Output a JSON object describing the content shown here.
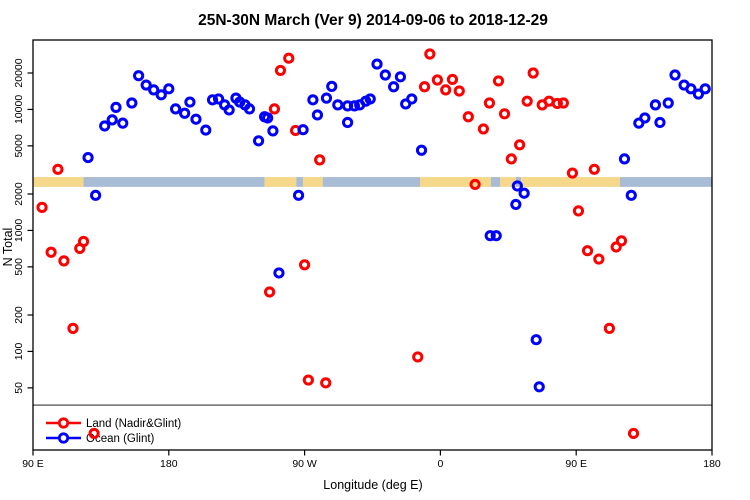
{
  "title": "25N-30N March (Ver 9)   2014-09-06 to 2018-12-29",
  "legend": {
    "items": [
      {
        "label": "Land (Nadir&Glint)",
        "color": "#FF0000"
      },
      {
        "label": "Ocean (Glint)",
        "color": "#0000FF"
      }
    ]
  },
  "chart_data": {
    "type": "scatter",
    "title": "25N-30N March (Ver 9)   2014-09-06 to 2018-12-29",
    "xlabel": "Longitude (deg E)",
    "ylabel": "N Total",
    "x_axis": {
      "range": [
        90,
        540
      ],
      "ticks": [
        90,
        180,
        270,
        360,
        450,
        540
      ],
      "tick_labels": [
        "90 E",
        "180",
        "90 W",
        "0",
        "90 E",
        "180"
      ],
      "note": "longitude axis starts at 90E and wraps eastward around the globe to 180"
    },
    "y_axis": {
      "scale": "log10",
      "range": [
        15,
        37500
      ],
      "ticks": [
        50,
        100,
        200,
        500,
        1000,
        2000,
        5000,
        10000,
        20000
      ],
      "tick_labels": [
        "50",
        "100",
        "200",
        "500",
        "1000",
        "2000",
        "5000",
        "10000",
        "20000"
      ]
    },
    "grid": false,
    "legend_position": "bottom-left-inside",
    "reference_line": {
      "n_value": 36,
      "color": "#808080"
    },
    "land_ocean_band": {
      "n_range": [
        2290,
        2760
      ],
      "land_color": "#F6D88A",
      "ocean_color": "#A8BCD6",
      "segments": [
        {
          "from": 90,
          "to": 123.5,
          "surface": "land"
        },
        {
          "from": 123.5,
          "to": 243.5,
          "surface": "ocean"
        },
        {
          "from": 243.5,
          "to": 264.5,
          "surface": "land"
        },
        {
          "from": 264.5,
          "to": 269,
          "surface": "ocean"
        },
        {
          "from": 269,
          "to": 282,
          "surface": "land"
        },
        {
          "from": 282,
          "to": 346.5,
          "surface": "ocean"
        },
        {
          "from": 346.5,
          "to": 393.5,
          "surface": "land"
        },
        {
          "from": 393.5,
          "to": 399.5,
          "surface": "ocean"
        },
        {
          "from": 399.5,
          "to": 410,
          "surface": "land"
        },
        {
          "from": 410,
          "to": 413.5,
          "surface": "ocean"
        },
        {
          "from": 413.5,
          "to": 479,
          "surface": "land"
        },
        {
          "from": 479,
          "to": 540,
          "surface": "ocean"
        }
      ]
    },
    "series": [
      {
        "name": "Land (Nadir&Glint)",
        "color": "#FF0000",
        "marker": "open-circle",
        "points": [
          [
            106.5,
            3200
          ],
          [
            96,
            1550
          ],
          [
            102,
            660
          ],
          [
            110.5,
            560
          ],
          [
            123.5,
            810
          ],
          [
            121,
            710
          ],
          [
            116.5,
            155
          ],
          [
            130.5,
            21
          ],
          [
            246.8,
            310
          ],
          [
            250,
            10100
          ],
          [
            254,
            21000
          ],
          [
            259.5,
            26500
          ],
          [
            264,
            6700
          ],
          [
            270,
            520
          ],
          [
            272.5,
            58
          ],
          [
            284,
            55
          ],
          [
            280,
            3830
          ],
          [
            345,
            90
          ],
          [
            349.5,
            15400
          ],
          [
            353,
            28700
          ],
          [
            358,
            17500
          ],
          [
            363.5,
            14500
          ],
          [
            368,
            17700
          ],
          [
            372.5,
            14200
          ],
          [
            378.5,
            8700
          ],
          [
            383,
            2400
          ],
          [
            388.5,
            6900
          ],
          [
            392.5,
            11300
          ],
          [
            398.5,
            17200
          ],
          [
            402.5,
            9200
          ],
          [
            407,
            3900
          ],
          [
            412.5,
            5100
          ],
          [
            417.5,
            11700
          ],
          [
            421.5,
            20000
          ],
          [
            427.5,
            10900
          ],
          [
            432,
            11700
          ],
          [
            437.5,
            11200
          ],
          [
            441.5,
            11300
          ],
          [
            447.5,
            2980
          ],
          [
            462,
            3200
          ],
          [
            451.5,
            1450
          ],
          [
            457.5,
            680
          ],
          [
            465,
            580
          ],
          [
            476.5,
            730
          ],
          [
            480,
            820
          ],
          [
            472,
            155
          ],
          [
            488,
            21
          ]
        ]
      },
      {
        "name": "Ocean (Glint)",
        "color": "#0000FF",
        "marker": "open-circle",
        "points": [
          [
            126.5,
            4000
          ],
          [
            131.5,
            1950
          ],
          [
            137.5,
            7300
          ],
          [
            142.5,
            8200
          ],
          [
            145,
            10400
          ],
          [
            149.5,
            7700
          ],
          [
            155.5,
            11300
          ],
          [
            160,
            19000
          ],
          [
            165,
            15900
          ],
          [
            170,
            14500
          ],
          [
            175,
            13200
          ],
          [
            180,
            14800
          ],
          [
            184.5,
            10100
          ],
          [
            190.5,
            9300
          ],
          [
            194,
            11500
          ],
          [
            198,
            8300
          ],
          [
            204.5,
            6750
          ],
          [
            209,
            12000
          ],
          [
            213,
            12200
          ],
          [
            217,
            10900
          ],
          [
            220,
            9900
          ],
          [
            224.5,
            12400
          ],
          [
            227,
            11500
          ],
          [
            230.5,
            10900
          ],
          [
            233.5,
            10100
          ],
          [
            239.5,
            5500
          ],
          [
            243.5,
            8700
          ],
          [
            245.5,
            8500
          ],
          [
            249,
            6650
          ],
          [
            253,
            445
          ],
          [
            266,
            1950
          ],
          [
            269,
            6800
          ],
          [
            275.5,
            12000
          ],
          [
            278.5,
            9000
          ],
          [
            284.5,
            12400
          ],
          [
            288,
            15500
          ],
          [
            292,
            10900
          ],
          [
            298.5,
            10700
          ],
          [
            298.5,
            7800
          ],
          [
            303,
            10700
          ],
          [
            306.5,
            10900
          ],
          [
            310.5,
            11700
          ],
          [
            313.5,
            12200
          ],
          [
            318,
            23700
          ],
          [
            323.5,
            19250
          ],
          [
            329,
            15400
          ],
          [
            333.5,
            18600
          ],
          [
            337,
            11100
          ],
          [
            341,
            12200
          ],
          [
            347.5,
            4600
          ],
          [
            393,
            905
          ],
          [
            397,
            905
          ],
          [
            410,
            1640
          ],
          [
            411,
            2330
          ],
          [
            415.5,
            2030
          ],
          [
            423.5,
            125
          ],
          [
            425.5,
            51
          ],
          [
            482,
            3900
          ],
          [
            486.5,
            1950
          ],
          [
            491.5,
            7700
          ],
          [
            495.5,
            8500
          ],
          [
            502.5,
            10900
          ],
          [
            505.5,
            7800
          ],
          [
            511,
            11300
          ],
          [
            515.5,
            19250
          ],
          [
            521.5,
            15900
          ],
          [
            526,
            14800
          ],
          [
            531,
            13400
          ],
          [
            535.5,
            14800
          ]
        ]
      }
    ]
  }
}
